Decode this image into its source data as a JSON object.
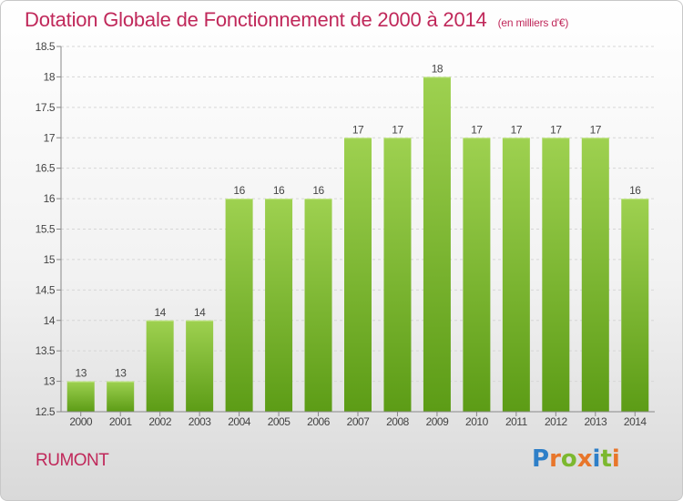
{
  "header": {
    "title": "Dotation Globale de Fonctionnement de 2000 à 2014",
    "unit": "(en milliers d'€)"
  },
  "footer": {
    "commune": "RUMONT",
    "logo_text": "Proxiti"
  },
  "colors": {
    "title": "#c0285a",
    "bar_light": "#9ed150",
    "bar_dark": "#5c9c16",
    "logo_letters": [
      "#2e7fc8",
      "#e8762b",
      "#7cb82f",
      "#e8762b",
      "#2e7fc8",
      "#7cb82f",
      "#e8762b"
    ]
  },
  "chart_data": {
    "type": "bar",
    "title": "Dotation Globale de Fonctionnement de 2000 à 2014",
    "subtitle": "(en milliers d'€)",
    "categories": [
      "2000",
      "2001",
      "2002",
      "2003",
      "2004",
      "2005",
      "2006",
      "2007",
      "2008",
      "2009",
      "2010",
      "2011",
      "2012",
      "2013",
      "2014"
    ],
    "values": [
      13,
      13,
      14,
      14,
      16,
      16,
      16,
      17,
      17,
      18,
      17,
      17,
      17,
      17,
      16
    ],
    "data_labels": [
      "13",
      "13",
      "14",
      "14",
      "16",
      "16",
      "16",
      "17",
      "17",
      "18",
      "17",
      "17",
      "17",
      "17",
      "16"
    ],
    "ylim": [
      12.5,
      18.5
    ],
    "yticks": [
      12.5,
      13,
      13.5,
      14,
      14.5,
      15,
      15.5,
      16,
      16.5,
      17,
      17.5,
      18,
      18.5
    ],
    "ytick_labels": [
      "12.5",
      "13",
      "13.5",
      "14",
      "14.5",
      "15",
      "15.5",
      "16",
      "16.5",
      "17",
      "17.5",
      "18",
      "18.5"
    ],
    "grid": true,
    "xlabel": "",
    "ylabel": ""
  }
}
